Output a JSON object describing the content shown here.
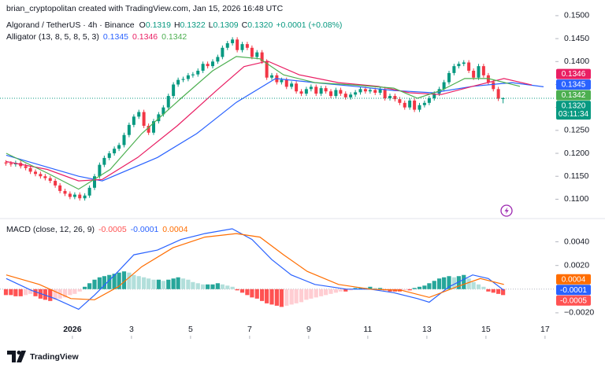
{
  "header": {
    "credit": "brian_cryptopolitan created with TradingView.com, Jan 15, 2026 16:48 UTC",
    "brand": "TradingView",
    "countdown": "03:11:34"
  },
  "chart_data": [
    {
      "type": "candlestick",
      "title": "Algorand / TetherUS · 4h · Binance",
      "ohlc_labels": [
        "O",
        "H",
        "L",
        "C"
      ],
      "change": "+0.0001 (+0.08%)",
      "up_color": "#089981",
      "down_color": "#f23645",
      "grid": false,
      "xlim": [
        -1.45,
        17.35
      ],
      "ylim": [
        0.1075,
        0.1505
      ],
      "yticks": [
        {
          "value": 0.11,
          "label": "0.1100"
        },
        {
          "value": 0.115,
          "label": "0.1150"
        },
        {
          "value": 0.12,
          "label": "0.1200"
        },
        {
          "value": 0.125,
          "label": "0.1250"
        },
        {
          "value": 0.13,
          "label": "0.1300"
        },
        {
          "value": 0.135,
          "label": "0.1350"
        },
        {
          "value": 0.14,
          "label": "0.1400"
        },
        {
          "value": 0.145,
          "label": "0.1450"
        },
        {
          "value": 0.15,
          "label": "0.1500"
        }
      ],
      "x": [
        -1.25,
        -1.08,
        -0.92,
        -0.75,
        -0.58,
        -0.42,
        -0.25,
        -0.08,
        0.08,
        0.25,
        0.42,
        0.58,
        0.75,
        0.92,
        1.08,
        1.25,
        1.42,
        1.58,
        1.75,
        1.92,
        2.08,
        2.25,
        2.42,
        2.58,
        2.75,
        2.92,
        3.08,
        3.25,
        3.42,
        3.58,
        3.75,
        3.92,
        4.08,
        4.25,
        4.42,
        4.58,
        4.75,
        4.92,
        5.08,
        5.25,
        5.42,
        5.58,
        5.75,
        5.92,
        6.08,
        6.25,
        6.42,
        6.58,
        6.75,
        6.92,
        7.08,
        7.25,
        7.42,
        7.58,
        7.75,
        7.92,
        8.08,
        8.25,
        8.42,
        8.58,
        8.75,
        8.92,
        9.08,
        9.25,
        9.42,
        9.58,
        9.75,
        9.92,
        10.08,
        10.25,
        10.42,
        10.58,
        10.75,
        10.92,
        11.08,
        11.25,
        11.42,
        11.58,
        11.75,
        11.92,
        12.08,
        12.25,
        12.42,
        12.58,
        12.75,
        12.92,
        13.08,
        13.25,
        13.42,
        13.58,
        13.75,
        13.92,
        14.08,
        14.25,
        14.42,
        14.58,
        14.75,
        14.92,
        15.08,
        15.25,
        15.42,
        15.58
      ],
      "open": [
        0.118,
        0.1178,
        0.1176,
        0.1179,
        0.1172,
        0.1168,
        0.116,
        0.1155,
        0.115,
        0.1146,
        0.114,
        0.113,
        0.1118,
        0.1112,
        0.1105,
        0.111,
        0.1102,
        0.1108,
        0.1125,
        0.115,
        0.1175,
        0.119,
        0.12,
        0.121,
        0.1218,
        0.124,
        0.1262,
        0.128,
        0.129,
        0.126,
        0.1245,
        0.127,
        0.1285,
        0.13,
        0.1325,
        0.135,
        0.136,
        0.1362,
        0.137,
        0.1372,
        0.138,
        0.1395,
        0.139,
        0.14,
        0.141,
        0.143,
        0.144,
        0.1448,
        0.1425,
        0.1438,
        0.143,
        0.141,
        0.142,
        0.14,
        0.1365,
        0.137,
        0.1355,
        0.136,
        0.1345,
        0.1352,
        0.1335,
        0.133,
        0.134,
        0.1345,
        0.133,
        0.1342,
        0.1335,
        0.1325,
        0.1338,
        0.133,
        0.1322,
        0.1328,
        0.1333,
        0.134,
        0.1335,
        0.1338,
        0.1332,
        0.134,
        0.132,
        0.1325,
        0.1318,
        0.131,
        0.13,
        0.1315,
        0.1295,
        0.1305,
        0.131,
        0.132,
        0.133,
        0.134,
        0.1355,
        0.1375,
        0.139,
        0.1395,
        0.1398,
        0.138,
        0.1365,
        0.139,
        0.137,
        0.1355,
        0.134,
        0.1319
      ],
      "high": [
        0.1185,
        0.1183,
        0.1184,
        0.1184,
        0.1177,
        0.1173,
        0.1165,
        0.116,
        0.1155,
        0.1151,
        0.1145,
        0.1135,
        0.1123,
        0.1117,
        0.1115,
        0.1115,
        0.1113,
        0.113,
        0.1155,
        0.118,
        0.1195,
        0.1205,
        0.1215,
        0.1223,
        0.1245,
        0.1267,
        0.1285,
        0.1295,
        0.1295,
        0.1265,
        0.1275,
        0.129,
        0.1305,
        0.133,
        0.1355,
        0.1365,
        0.1367,
        0.1375,
        0.1377,
        0.1385,
        0.14,
        0.14,
        0.1405,
        0.1415,
        0.1435,
        0.1445,
        0.1453,
        0.1453,
        0.1443,
        0.1443,
        0.1435,
        0.1425,
        0.1425,
        0.1405,
        0.1375,
        0.1375,
        0.1365,
        0.1365,
        0.1357,
        0.1357,
        0.134,
        0.1345,
        0.135,
        0.135,
        0.1347,
        0.1347,
        0.134,
        0.1343,
        0.1343,
        0.1335,
        0.1333,
        0.1338,
        0.1345,
        0.1345,
        0.1343,
        0.1343,
        0.1345,
        0.1345,
        0.133,
        0.133,
        0.1323,
        0.1315,
        0.132,
        0.132,
        0.131,
        0.1315,
        0.1325,
        0.1335,
        0.1345,
        0.136,
        0.138,
        0.1395,
        0.14,
        0.1403,
        0.1403,
        0.1385,
        0.1395,
        0.1395,
        0.1375,
        0.136,
        0.1345,
        0.1322
      ],
      "low": [
        0.1173,
        0.1171,
        0.1171,
        0.1167,
        0.1163,
        0.1155,
        0.115,
        0.1145,
        0.1141,
        0.1135,
        0.1125,
        0.1113,
        0.1107,
        0.11,
        0.11,
        0.1097,
        0.1097,
        0.1103,
        0.112,
        0.1145,
        0.117,
        0.1185,
        0.1195,
        0.1205,
        0.1213,
        0.1235,
        0.1257,
        0.1275,
        0.1255,
        0.124,
        0.124,
        0.1265,
        0.128,
        0.1295,
        0.132,
        0.1345,
        0.1355,
        0.1357,
        0.1365,
        0.1367,
        0.1375,
        0.1385,
        0.1385,
        0.1395,
        0.1405,
        0.1425,
        0.1435,
        0.142,
        0.142,
        0.1425,
        0.1405,
        0.1405,
        0.1395,
        0.136,
        0.136,
        0.135,
        0.135,
        0.134,
        0.134,
        0.133,
        0.1325,
        0.1325,
        0.1335,
        0.1325,
        0.1325,
        0.133,
        0.132,
        0.132,
        0.1325,
        0.1317,
        0.1317,
        0.1323,
        0.1328,
        0.133,
        0.133,
        0.1327,
        0.1327,
        0.1315,
        0.1315,
        0.1313,
        0.1305,
        0.1295,
        0.1295,
        0.129,
        0.129,
        0.13,
        0.1305,
        0.1315,
        0.1325,
        0.1335,
        0.135,
        0.137,
        0.1385,
        0.139,
        0.1375,
        0.136,
        0.136,
        0.1365,
        0.135,
        0.1335,
        0.1314,
        0.1309
      ],
      "close": [
        0.1178,
        0.1176,
        0.1179,
        0.1172,
        0.1168,
        0.116,
        0.1155,
        0.115,
        0.1146,
        0.114,
        0.113,
        0.1118,
        0.1112,
        0.1105,
        0.111,
        0.1102,
        0.1108,
        0.1125,
        0.115,
        0.1175,
        0.119,
        0.12,
        0.121,
        0.1218,
        0.124,
        0.1262,
        0.128,
        0.129,
        0.126,
        0.1245,
        0.127,
        0.1285,
        0.13,
        0.1325,
        0.135,
        0.136,
        0.1362,
        0.137,
        0.1372,
        0.138,
        0.1395,
        0.139,
        0.14,
        0.141,
        0.143,
        0.144,
        0.1448,
        0.1425,
        0.1438,
        0.143,
        0.141,
        0.142,
        0.14,
        0.1365,
        0.137,
        0.1355,
        0.136,
        0.1345,
        0.1352,
        0.1335,
        0.133,
        0.134,
        0.1345,
        0.133,
        0.1342,
        0.1335,
        0.1325,
        0.1338,
        0.133,
        0.1322,
        0.1328,
        0.1333,
        0.134,
        0.1335,
        0.1338,
        0.1332,
        0.134,
        0.132,
        0.1325,
        0.1318,
        0.131,
        0.13,
        0.1315,
        0.1295,
        0.1305,
        0.131,
        0.132,
        0.133,
        0.134,
        0.1355,
        0.1375,
        0.139,
        0.1395,
        0.1398,
        0.138,
        0.1365,
        0.139,
        0.137,
        0.1355,
        0.134,
        0.1319,
        {
          "value": 0.132,
          "label": "0.1320"
        }
      ],
      "indicator": {
        "label": "Alligator (13, 8, 5, 8, 5, 3)",
        "lines": [
          {
            "color": "#2962ff",
            "last": 0.1345,
            "x": [
              -1.24,
              1.21,
              2.01,
              3.88,
              5.21,
              6.55,
              7.88,
              9.21,
              10.55,
              11.88,
              13.21,
              14.55,
              15.88,
              16.95
            ],
            "values": [
              0.1196,
              0.115,
              0.114,
              0.1191,
              0.1243,
              0.1311,
              0.1363,
              0.1354,
              0.1346,
              0.1337,
              0.1332,
              0.1346,
              0.1354,
              0.1345
            ]
          },
          {
            "color": "#e91e63",
            "last": 0.1346,
            "x": [
              -1.24,
              0.15,
              1.21,
              2.01,
              3.21,
              4.55,
              5.88,
              6.81,
              7.61,
              8.68,
              10.01,
              11.35,
              12.41,
              13.48,
              14.55,
              15.61,
              16.55
            ],
            "values": [
              0.1182,
              0.1165,
              0.114,
              0.1143,
              0.1191,
              0.126,
              0.1337,
              0.1389,
              0.1401,
              0.1371,
              0.1354,
              0.1346,
              0.1332,
              0.1328,
              0.1346,
              0.1363,
              0.1349
            ]
          },
          {
            "color": "#4caf50",
            "last": 0.1342,
            "x": [
              -1.24,
              0.15,
              1.21,
              2.28,
              3.35,
              4.68,
              5.75,
              6.55,
              7.35,
              8.15,
              9.21,
              10.55,
              11.88,
              12.68,
              13.48,
              14.28,
              15.08,
              16.15
            ],
            "values": [
              0.12,
              0.1157,
              0.1122,
              0.1165,
              0.1243,
              0.132,
              0.138,
              0.1411,
              0.1406,
              0.1371,
              0.1354,
              0.1349,
              0.1342,
              0.132,
              0.1337,
              0.1363,
              0.1363,
              0.1346
            ]
          }
        ]
      }
    },
    {
      "type": "macd",
      "label": "MACD (close, 12, 26, 9)",
      "xlim": [
        -1.45,
        17.35
      ],
      "ylim": [
        -0.0038,
        0.0057
      ],
      "xticks": [
        {
          "value": 1,
          "label": "2026"
        },
        3,
        5,
        7,
        9,
        11,
        13,
        15,
        17
      ],
      "yticks": [
        {
          "value": -0.002,
          "label": "−0.0020"
        },
        {
          "value": 0.002,
          "label": "0.0020"
        },
        {
          "value": 0.004,
          "label": "0.0040"
        }
      ],
      "histogram": {
        "colors": {
          "positive_rising": "#26a69a",
          "positive_falling": "#b2dfdb",
          "negative_rising": "#ffcdd2",
          "negative_falling": "#ff5252"
        },
        "x": [
          -1.25,
          -1.08,
          -0.92,
          -0.75,
          -0.58,
          -0.42,
          -0.25,
          -0.08,
          0.08,
          0.25,
          0.42,
          0.58,
          0.75,
          0.92,
          1.08,
          1.25,
          1.42,
          1.58,
          1.75,
          1.92,
          2.08,
          2.25,
          2.42,
          2.58,
          2.75,
          2.92,
          3.08,
          3.25,
          3.42,
          3.58,
          3.75,
          3.92,
          4.08,
          4.25,
          4.42,
          4.58,
          4.75,
          4.92,
          5.08,
          5.25,
          5.42,
          5.58,
          5.75,
          5.92,
          6.08,
          6.25,
          6.42,
          6.58,
          6.75,
          6.92,
          7.08,
          7.25,
          7.42,
          7.58,
          7.75,
          7.92,
          8.08,
          8.25,
          8.42,
          8.58,
          8.75,
          8.92,
          9.08,
          9.25,
          9.42,
          9.58,
          9.75,
          9.92,
          10.08,
          10.25,
          10.42,
          10.58,
          10.75,
          10.92,
          11.08,
          11.25,
          11.42,
          11.58,
          11.75,
          11.92,
          12.08,
          12.25,
          12.42,
          12.58,
          12.75,
          12.92,
          13.08,
          13.25,
          13.42,
          13.58,
          13.75,
          13.92,
          14.08,
          14.25,
          14.42,
          14.58,
          14.75,
          14.92,
          15.08,
          15.25,
          15.42,
          15.58
        ],
        "values": [
          -0.0005,
          -0.0005,
          -0.0006,
          -0.0006,
          -0.0005,
          -0.0004,
          -0.0006,
          -0.0008,
          -0.0009,
          -0.001,
          -0.0009,
          -0.0008,
          -0.0007,
          -0.0005,
          -0.0004,
          -0.0002,
          0.0002,
          0.0005,
          0.0008,
          0.001,
          0.0011,
          0.0012,
          0.0013,
          0.0014,
          0.0015,
          0.0014,
          0.0012,
          0.0011,
          0.001,
          0.0009,
          0.0008,
          0.0008,
          0.0007,
          0.0008,
          0.0009,
          0.001,
          0.0009,
          0.0008,
          0.0006,
          0.0005,
          0.0004,
          0.0004,
          0.0004,
          0.0005,
          0.0004,
          0.0003,
          0.0002,
          -0.0001,
          -0.0003,
          -0.0005,
          -0.0007,
          -0.0008,
          -0.001,
          -0.0012,
          -0.0013,
          -0.0014,
          -0.0015,
          -0.0014,
          -0.0013,
          -0.0012,
          -0.0011,
          -0.0009,
          -0.0008,
          -0.0007,
          -0.0006,
          -0.0005,
          -0.0004,
          -0.0003,
          -0.0002,
          -0.0002,
          -0.0001,
          0.0001,
          0.0001,
          0.0001,
          0.0002,
          0.0001,
          0.0001,
          -0.0001,
          -0.0002,
          -0.0002,
          -0.0002,
          -0.0001,
          -0.0001,
          0.0001,
          0.0002,
          0.0003,
          0.0005,
          0.0007,
          0.0009,
          0.001,
          0.0011,
          0.001,
          0.0011,
          0.0012,
          0.0009,
          0.0006,
          0.0004,
          0.0002,
          -0.0002,
          -0.0003,
          -0.0004,
          -0.0005
        ]
      },
      "lines": [
        {
          "color": "#2962ff",
          "x": [
            -1.24,
            -0.39,
            0.41,
            1.21,
            1.75,
            2.55,
            3.08,
            3.88,
            4.68,
            5.48,
            6.41,
            7.08,
            7.75,
            8.41,
            9.21,
            10.28,
            11.08,
            11.88,
            12.68,
            13.08,
            13.75,
            14.55,
            15.08,
            15.61
          ],
          "values": [
            0.0009,
            -0.0001,
            -0.0008,
            -0.0017,
            -0.0005,
            0.0015,
            0.0029,
            0.0033,
            0.0042,
            0.0047,
            0.0051,
            0.0042,
            0.0025,
            0.0012,
            0.0004,
            0,
            0,
            -0.0003,
            -0.0008,
            -0.0011,
            0.0002,
            0.0012,
            0.0009,
            -0.0001
          ]
        },
        {
          "color": "#ff6d00",
          "x": [
            -1.24,
            -0.12,
            0.95,
            1.75,
            2.55,
            3.35,
            4.41,
            5.48,
            6.55,
            7.35,
            8.15,
            8.95,
            10.01,
            11.08,
            12.15,
            13.08,
            14.01,
            14.81,
            15.61
          ],
          "values": [
            0.0012,
            0.0004,
            -0.0008,
            -0.0009,
            0.0002,
            0.0019,
            0.0035,
            0.0044,
            0.0047,
            0.0044,
            0.0029,
            0.0015,
            0.0004,
            0,
            -0.0001,
            -0.0007,
            0.0002,
            0.0009,
            0.0004
          ]
        }
      ]
    }
  ]
}
